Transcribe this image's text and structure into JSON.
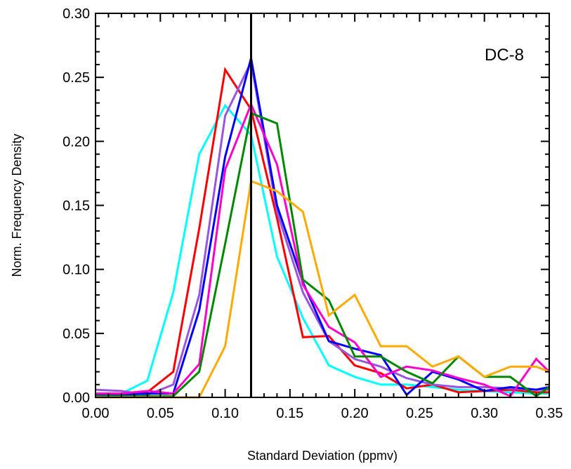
{
  "chart_data": {
    "type": "line",
    "title": "",
    "annotation": "DC-8",
    "xlabel": "Standard Deviation (ppmv)",
    "ylabel": "Norm. Frequency Density",
    "xlim": [
      0.0,
      0.35
    ],
    "ylim": [
      0.0,
      0.3
    ],
    "x_ticks": [
      "0.00",
      "0.05",
      "0.10",
      "0.15",
      "0.20",
      "0.25",
      "0.30",
      "0.35"
    ],
    "y_ticks": [
      "0.00",
      "0.05",
      "0.10",
      "0.15",
      "0.20",
      "0.25",
      "0.30"
    ],
    "grid": false,
    "reference_line_x": 0.12,
    "x": [
      0.0,
      0.02,
      0.04,
      0.06,
      0.08,
      0.1,
      0.12,
      0.14,
      0.16,
      0.18,
      0.2,
      0.22,
      0.24,
      0.26,
      0.28,
      0.3,
      0.32,
      0.34,
      0.35
    ],
    "series": [
      {
        "color": "#00ffff",
        "values": [
          0.003,
          0.003,
          0.013,
          0.082,
          0.19,
          0.228,
          0.205,
          0.11,
          0.062,
          0.025,
          0.016,
          0.01,
          0.01,
          0.008,
          0.006,
          0.005,
          0.004,
          0.003,
          0.003
        ]
      },
      {
        "color": "#ff0000",
        "values": [
          0.002,
          0.002,
          0.004,
          0.02,
          0.132,
          0.256,
          0.225,
          0.14,
          0.047,
          0.048,
          0.025,
          0.019,
          0.007,
          0.01,
          0.004,
          0.005,
          0.006,
          0.004,
          0.004
        ]
      },
      {
        "color": "#9955dd",
        "values": [
          0.006,
          0.005,
          0.002,
          0.01,
          0.08,
          0.22,
          0.262,
          0.145,
          0.082,
          0.044,
          0.03,
          0.024,
          0.015,
          0.01,
          0.008,
          0.008,
          0.007,
          0.006,
          0.006
        ]
      },
      {
        "color": "#0000ff",
        "values": [
          0.002,
          0.002,
          0.003,
          0.003,
          0.068,
          0.188,
          0.265,
          0.15,
          0.09,
          0.044,
          0.038,
          0.033,
          0.002,
          0.02,
          0.014,
          0.005,
          0.008,
          0.006,
          0.008
        ]
      },
      {
        "color": "#ff00cc",
        "values": [
          0.003,
          0.003,
          0.005,
          0.003,
          0.026,
          0.178,
          0.229,
          0.182,
          0.088,
          0.055,
          0.043,
          0.016,
          0.024,
          0.021,
          0.015,
          0.01,
          0.001,
          0.03,
          0.02
        ]
      },
      {
        "color": "#008800",
        "values": [
          0.001,
          0.001,
          0.001,
          0.001,
          0.02,
          0.12,
          0.222,
          0.214,
          0.092,
          0.076,
          0.032,
          0.032,
          0.02,
          0.011,
          0.032,
          0.016,
          0.016,
          0.001,
          0.008
        ]
      },
      {
        "color": "#ffaa00",
        "values": [
          0.0,
          0.0,
          0.0,
          0.0,
          0.0,
          0.04,
          0.169,
          0.161,
          0.145,
          0.064,
          0.08,
          0.04,
          0.04,
          0.024,
          0.032,
          0.016,
          0.024,
          0.024,
          0.02
        ]
      }
    ]
  }
}
